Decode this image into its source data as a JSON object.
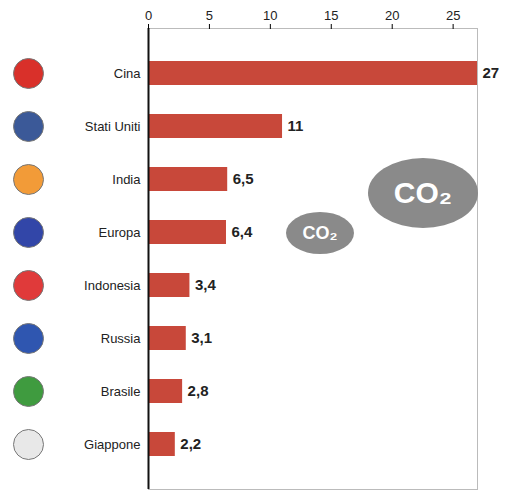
{
  "chart_data": {
    "type": "bar",
    "orientation": "horizontal",
    "categories": [
      "Cina",
      "Stati Uniti",
      "India",
      "Europa",
      "Indonesia",
      "Russia",
      "Brasile",
      "Giappone"
    ],
    "values": [
      27,
      11,
      6.5,
      6.4,
      3.4,
      3.1,
      2.8,
      2.2
    ],
    "value_labels": [
      "27",
      "11",
      "6,5",
      "6,4",
      "3,4",
      "3,1",
      "2,8",
      "2,2"
    ],
    "data_labels": true,
    "color": "#c8483a",
    "xlim": [
      0,
      27
    ],
    "xticks": [
      0,
      5,
      10,
      15,
      20,
      25
    ],
    "annotations": [
      "CO₂",
      "CO₂"
    ]
  }
}
